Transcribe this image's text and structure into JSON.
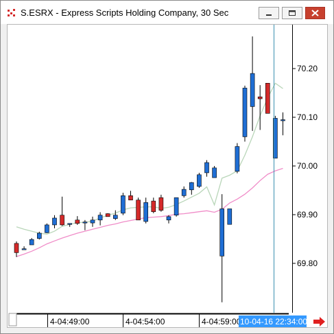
{
  "window": {
    "title": "S.ESRX - Express Scripts Holding Company, 30 Sec"
  },
  "colors": {
    "up_candle": "#1f6ed4",
    "down_candle": "#d42a2a",
    "fast_ma": "#b9d6b9",
    "slow_ma": "#f08cc8",
    "cursor_line": "#3a8fb0",
    "time_label_bg": "#3399ff",
    "scroll_arrow": "#e02020"
  },
  "icons": {
    "app": "candlestick-chart-icon",
    "scroll": "right-arrow-icon"
  },
  "time_axis": {
    "labels": [
      "4-04:49:00",
      "4-04:54:00",
      "4-04:59:00"
    ],
    "cursor_label": "10-04-16 22:34:00"
  },
  "chart_data": {
    "type": "candlestick",
    "title": "S.ESRX - Express Scripts Holding Company, 30 Sec",
    "ylim": [
      69.73,
      70.29
    ],
    "yticks": [
      69.8,
      69.9,
      70.0,
      70.1,
      70.2
    ],
    "ytick_labels": [
      "69.80",
      "69.90",
      "70.00",
      "70.10",
      "70.20"
    ],
    "grid": false,
    "bars": [
      {
        "o": 69.841,
        "h": 69.845,
        "l": 69.813,
        "c": 69.822
      },
      {
        "o": 69.83,
        "h": 69.835,
        "l": 69.83,
        "c": 69.83
      },
      {
        "o": 69.838,
        "h": 69.852,
        "l": 69.838,
        "c": 69.849
      },
      {
        "o": 69.851,
        "h": 69.865,
        "l": 69.849,
        "c": 69.862
      },
      {
        "o": 69.863,
        "h": 69.882,
        "l": 69.862,
        "c": 69.879
      },
      {
        "o": 69.879,
        "h": 69.899,
        "l": 69.872,
        "c": 69.893
      },
      {
        "o": 69.899,
        "h": 69.937,
        "l": 69.877,
        "c": 69.879
      },
      {
        "o": 69.882,
        "h": 69.882,
        "l": 69.875,
        "c": 69.882
      },
      {
        "o": 69.889,
        "h": 69.897,
        "l": 69.879,
        "c": 69.882
      },
      {
        "o": 69.885,
        "h": 69.889,
        "l": 69.868,
        "c": 69.885
      },
      {
        "o": 69.883,
        "h": 69.896,
        "l": 69.875,
        "c": 69.889
      },
      {
        "o": 69.889,
        "h": 69.905,
        "l": 69.878,
        "c": 69.899
      },
      {
        "o": 69.902,
        "h": 69.903,
        "l": 69.896,
        "c": 69.896
      },
      {
        "o": 69.892,
        "h": 69.909,
        "l": 69.889,
        "c": 69.899
      },
      {
        "o": 69.903,
        "h": 69.945,
        "l": 69.899,
        "c": 69.939
      },
      {
        "o": 69.939,
        "h": 69.949,
        "l": 69.93,
        "c": 69.93
      },
      {
        "o": 69.93,
        "h": 69.935,
        "l": 69.889,
        "c": 69.889
      },
      {
        "o": 69.886,
        "h": 69.935,
        "l": 69.882,
        "c": 69.925
      },
      {
        "o": 69.928,
        "h": 69.935,
        "l": 69.903,
        "c": 69.906
      },
      {
        "o": 69.935,
        "h": 69.941,
        "l": 69.906,
        "c": 69.909
      },
      {
        "o": 69.889,
        "h": 69.899,
        "l": 69.882,
        "c": 69.896
      },
      {
        "o": 69.899,
        "h": 69.935,
        "l": 69.896,
        "c": 69.935
      },
      {
        "o": 69.939,
        "h": 69.958,
        "l": 69.935,
        "c": 69.952
      },
      {
        "o": 69.951,
        "h": 69.967,
        "l": 69.941,
        "c": 69.966
      },
      {
        "o": 69.958,
        "h": 69.986,
        "l": 69.955,
        "c": 69.982
      },
      {
        "o": 69.986,
        "h": 70.012,
        "l": 69.978,
        "c": 70.007
      },
      {
        "o": 69.976,
        "h": 70.0,
        "l": 69.976,
        "c": 69.996
      },
      {
        "o": 69.815,
        "h": 69.942,
        "l": 69.72,
        "c": 69.912
      },
      {
        "o": 69.88,
        "h": 69.912,
        "l": 69.88,
        "c": 69.912
      },
      {
        "o": 69.989,
        "h": 70.047,
        "l": 69.985,
        "c": 70.04
      },
      {
        "o": 70.06,
        "h": 70.165,
        "l": 70.05,
        "c": 70.16
      },
      {
        "o": 70.122,
        "h": 70.266,
        "l": 70.072,
        "c": 70.19
      },
      {
        "o": 70.142,
        "h": 70.166,
        "l": 70.074,
        "c": 70.138
      },
      {
        "o": 70.17,
        "h": 70.17,
        "l": 70.108,
        "c": 70.108
      },
      {
        "o": 70.016,
        "h": 70.103,
        "l": 70.016,
        "c": 70.098
      },
      {
        "o": 70.095,
        "h": 70.11,
        "l": 70.063,
        "c": 70.095
      }
    ],
    "fast_ma": [
      69.875,
      69.87,
      69.866,
      69.862,
      69.86,
      69.866,
      69.876,
      69.88,
      69.884,
      69.884,
      69.887,
      69.893,
      69.899,
      69.903,
      69.91,
      69.914,
      69.915,
      69.916,
      69.916,
      69.913,
      69.915,
      69.921,
      69.928,
      69.936,
      69.944,
      69.957,
      69.92,
      69.975,
      69.981,
      69.99,
      70.022,
      70.06,
      70.103,
      70.14,
      70.17,
      70.159
    ],
    "slow_ma": [
      69.814,
      69.819,
      69.825,
      69.832,
      69.84,
      69.846,
      69.852,
      69.857,
      69.862,
      69.866,
      69.87,
      69.874,
      69.878,
      69.881,
      69.885,
      69.888,
      69.891,
      69.894,
      69.895,
      69.896,
      69.898,
      69.901,
      69.902,
      69.904,
      69.906,
      69.908,
      69.905,
      69.911,
      69.924,
      69.932,
      69.942,
      69.955,
      69.97,
      69.983,
      69.99,
      69.995
    ]
  }
}
